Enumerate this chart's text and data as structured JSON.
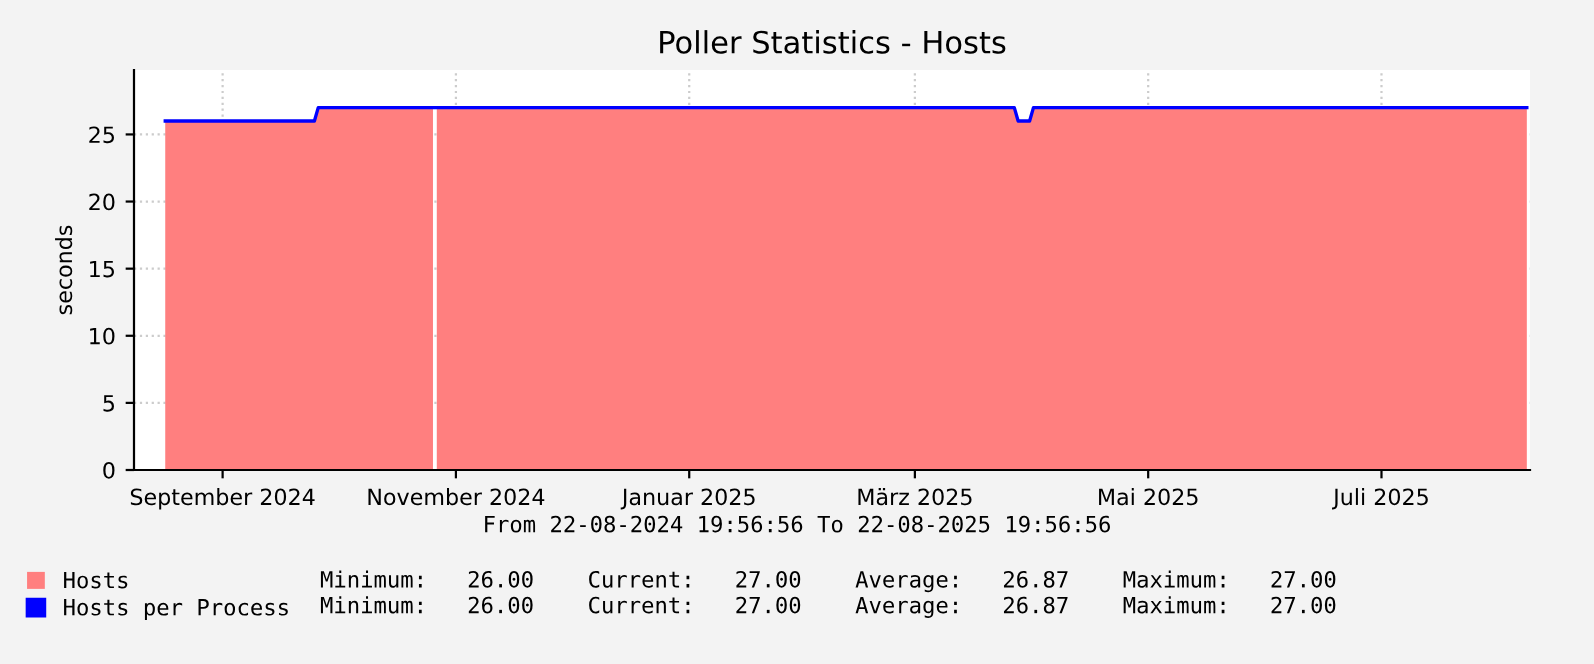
{
  "chart_data": {
    "type": "area",
    "title": "Poller Statistics - Hosts",
    "ylabel": "seconds",
    "xlim": [
      "2024-08-22T19:56",
      "2025-08-22T19:56"
    ],
    "xticks": [
      {
        "value": "2024-09-15",
        "label": "September 2024"
      },
      {
        "value": "2024-11-15",
        "label": "November 2024"
      },
      {
        "value": "2025-01-15",
        "label": "Januar 2025"
      },
      {
        "value": "2025-03-15",
        "label": "März 2025"
      },
      {
        "value": "2025-05-15",
        "label": "Mai 2025"
      },
      {
        "value": "2025-07-15",
        "label": "Juli 2025"
      }
    ],
    "ylim": [
      0,
      29.8
    ],
    "yticks": [
      0,
      5,
      10,
      15,
      20,
      25
    ],
    "grid": true,
    "legend": "bottom",
    "series": [
      {
        "name": "Hosts",
        "color": "#ff7f7f",
        "x": [
          "2024-08-31",
          "2024-10-09",
          "2024-10-10",
          "2024-11-09",
          "2024-11-09T12:00",
          "2024-11-10",
          "2025-04-10",
          "2025-04-11",
          "2025-04-14",
          "2025-04-15",
          "2025-08-22"
        ],
        "values": [
          26,
          26,
          27,
          27,
          null,
          27,
          27,
          26,
          26,
          27,
          27
        ]
      },
      {
        "name": "Hosts per Process",
        "type": "line",
        "color": "#0000ff",
        "x": [
          "2024-08-31",
          "2024-10-09",
          "2024-10-10",
          "2025-04-10",
          "2025-04-11",
          "2025-04-14",
          "2025-04-15",
          "2025-08-22"
        ],
        "values": [
          26,
          26,
          27,
          27,
          26,
          26,
          27,
          27
        ]
      }
    ],
    "annotations": [
      "From 22-08-2024 19:56:56 To 22-08-2025 19:56:56",
      "Minimum:   26.00    Current:   27.00    Average:   26.87    Maximum:   27.00",
      "Minimum:   26.00    Current:   27.00    Average:   26.87    Maximum:   27.00"
    ]
  }
}
